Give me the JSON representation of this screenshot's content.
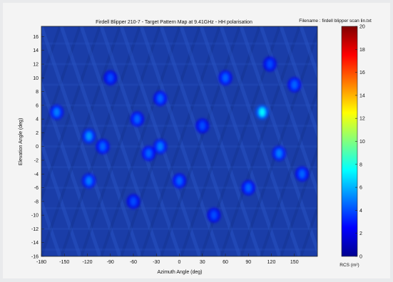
{
  "chart_data": {
    "type": "heatmap",
    "title": "Firdell Blipper 210-7 - Target Pattern Map at 9.41GHz - HH polarisation",
    "file_label": "Filename : firdell blipper scan lin.txt",
    "xlabel": "Azimuth Angle (deg)",
    "ylabel": "Elevation Angle (deg)",
    "x_ticks": [
      -180,
      -150,
      -120,
      -90,
      -60,
      -30,
      0,
      30,
      60,
      90,
      120,
      150
    ],
    "y_ticks": [
      -16,
      -14,
      -12,
      -10,
      -8,
      -6,
      -4,
      -2,
      0,
      2,
      4,
      6,
      8,
      10,
      12,
      14,
      16
    ],
    "xlim": [
      -180,
      180
    ],
    "ylim": [
      -16,
      17.5
    ],
    "colorbar": {
      "label": "RCS (m²)",
      "ticks": [
        0,
        2,
        4,
        6,
        8,
        10,
        12,
        14,
        16,
        18,
        20
      ],
      "range": [
        0,
        20
      ],
      "colormap": "jet"
    },
    "hotspots": [
      {
        "az": 108,
        "el": 5,
        "rcs": 7.5
      },
      {
        "az": -160,
        "el": 5,
        "rcs": 5.0
      },
      {
        "az": -118,
        "el": 1.5,
        "rcs": 5.5
      },
      {
        "az": -118,
        "el": -5,
        "rcs": 5.0
      },
      {
        "az": -100,
        "el": 0,
        "rcs": 4.5
      },
      {
        "az": -55,
        "el": 4,
        "rcs": 4.5
      },
      {
        "az": -40,
        "el": -1,
        "rcs": 4.5
      },
      {
        "az": -25,
        "el": 0,
        "rcs": 5.0
      },
      {
        "az": -25,
        "el": 7,
        "rcs": 4.5
      },
      {
        "az": 0,
        "el": -5,
        "rcs": 4.5
      },
      {
        "az": 30,
        "el": 3,
        "rcs": 4.0
      },
      {
        "az": 60,
        "el": 10,
        "rcs": 4.5
      },
      {
        "az": 90,
        "el": -6,
        "rcs": 4.5
      },
      {
        "az": 130,
        "el": -1,
        "rcs": 5.0
      },
      {
        "az": 150,
        "el": 9,
        "rcs": 4.5
      },
      {
        "az": 160,
        "el": -4,
        "rcs": 4.5
      },
      {
        "az": -60,
        "el": -8,
        "rcs": 4.0
      },
      {
        "az": -90,
        "el": 10,
        "rcs": 4.0
      },
      {
        "az": 45,
        "el": -10,
        "rcs": 4.0
      },
      {
        "az": 118,
        "el": 12,
        "rcs": 4.0
      }
    ]
  }
}
